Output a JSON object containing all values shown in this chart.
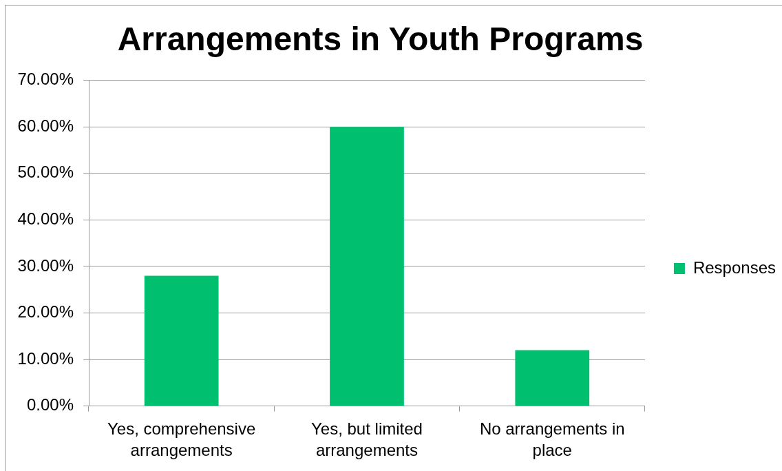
{
  "chart_data": {
    "type": "bar",
    "title": "Arrangements in Youth Programs",
    "categories": [
      "Yes, comprehensive arrangements",
      "Yes, but limited arrangements",
      "No arrangements in place"
    ],
    "series": [
      {
        "name": "Responses",
        "color": "#00bf6f",
        "values": [
          28,
          60,
          12
        ]
      }
    ],
    "ylim": [
      0,
      70
    ],
    "yticks": [
      {
        "value": 0,
        "label": "0.00%"
      },
      {
        "value": 10,
        "label": "10.00%"
      },
      {
        "value": 20,
        "label": "20.00%"
      },
      {
        "value": 30,
        "label": "30.00%"
      },
      {
        "value": 40,
        "label": "40.00%"
      },
      {
        "value": 50,
        "label": "50.00%"
      },
      {
        "value": 60,
        "label": "60.00%"
      },
      {
        "value": 70,
        "label": "70.00%"
      }
    ],
    "grid": "y",
    "legend": "right"
  }
}
